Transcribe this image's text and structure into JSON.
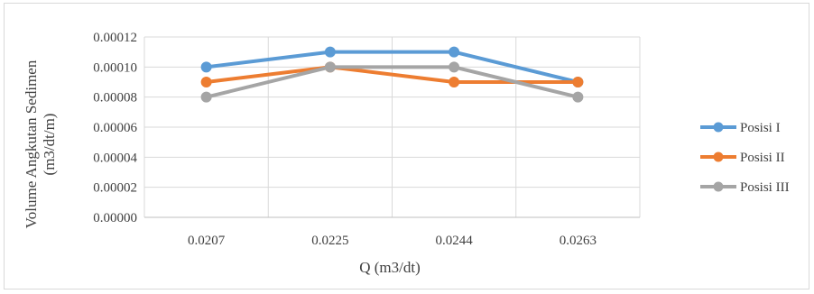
{
  "chart_data": {
    "type": "line",
    "categories": [
      "0.0207",
      "0.0225",
      "0.0244",
      "0.0263"
    ],
    "series": [
      {
        "name": "Posisi I",
        "color": "#5b9bd5",
        "values": [
          0.0001,
          0.00011,
          0.00011,
          9e-05
        ]
      },
      {
        "name": "Posisi II",
        "color": "#ed7d31",
        "values": [
          9e-05,
          0.0001,
          9e-05,
          9e-05
        ]
      },
      {
        "name": "Posisi III",
        "color": "#a5a5a5",
        "values": [
          8e-05,
          0.0001,
          0.0001,
          8e-05
        ]
      }
    ],
    "y_ticks": [
      "0.00000",
      "0.00002",
      "0.00004",
      "0.00006",
      "0.00008",
      "0.00010",
      "0.00012"
    ],
    "ylim": [
      0,
      0.00012
    ],
    "xlabel": "Q (m3/dt)",
    "ylabel": "Volume Angkutan Sedimen",
    "ylabel_unit": "(m3/dt/m)",
    "legend_position": "right",
    "grid": true
  }
}
